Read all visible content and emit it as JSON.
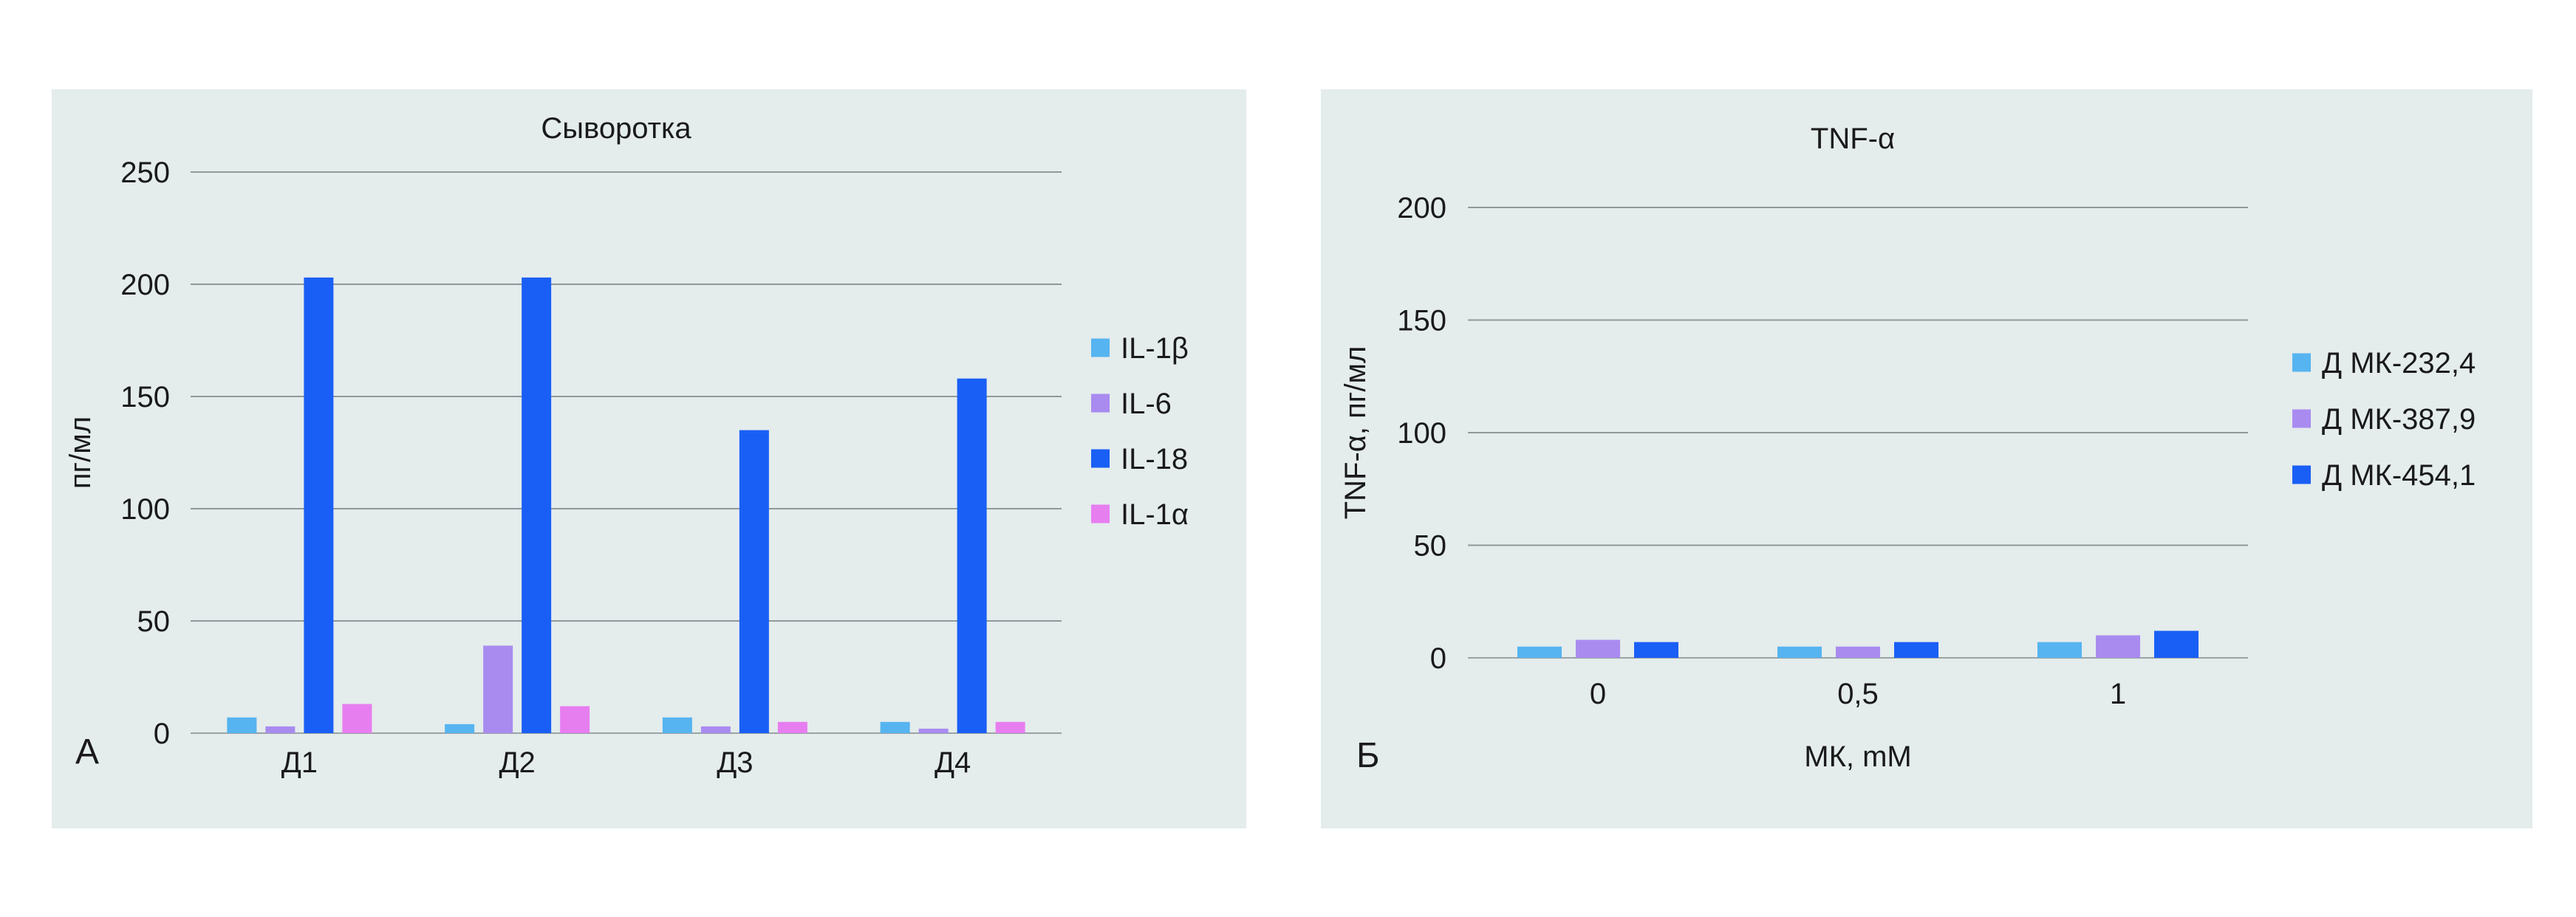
{
  "panels": [
    {
      "letter": "А",
      "title": "Сыворотка",
      "ylabel": "пг/мл",
      "xlabel": ""
    },
    {
      "letter": "Б",
      "title": "TNF-α",
      "ylabel": "TNF-α, пг/мл",
      "xlabel": "МК, mM"
    }
  ],
  "chart_data": [
    {
      "type": "bar",
      "title": "Сыворотка",
      "ylabel": "пг/мл",
      "xlabel": "",
      "categories": [
        "Д1",
        "Д2",
        "Д3",
        "Д4"
      ],
      "ylim": [
        0,
        250
      ],
      "yticks": [
        0,
        50,
        100,
        150,
        200,
        250
      ],
      "grid": true,
      "legend_position": "right",
      "series": [
        {
          "name": "IL-1β",
          "color": "#56b4f0",
          "values": [
            7,
            4,
            7,
            5
          ]
        },
        {
          "name": "IL-6",
          "color": "#a98bf0",
          "values": [
            3,
            39,
            3,
            2
          ]
        },
        {
          "name": "IL-18",
          "color": "#1a5ff5",
          "values": [
            203,
            203,
            135,
            158
          ]
        },
        {
          "name": "IL-1α",
          "color": "#e77ef0",
          "values": [
            13,
            12,
            5,
            5
          ]
        }
      ]
    },
    {
      "type": "bar",
      "title": "TNF-α",
      "ylabel": "TNF-α, пг/мл",
      "xlabel": "МК, mM",
      "categories": [
        "0",
        "0,5",
        "1"
      ],
      "ylim": [
        0,
        200
      ],
      "yticks": [
        0,
        50,
        100,
        150,
        200
      ],
      "grid": true,
      "legend_position": "right",
      "series": [
        {
          "name": "Д МК-232,4",
          "color": "#56b4f0",
          "values": [
            5,
            5,
            7
          ]
        },
        {
          "name": "Д МК-387,9",
          "color": "#a98bf0",
          "values": [
            8,
            5,
            10
          ]
        },
        {
          "name": "Д МК-454,1",
          "color": "#1a5ff5",
          "values": [
            7,
            7,
            12
          ]
        }
      ]
    }
  ]
}
